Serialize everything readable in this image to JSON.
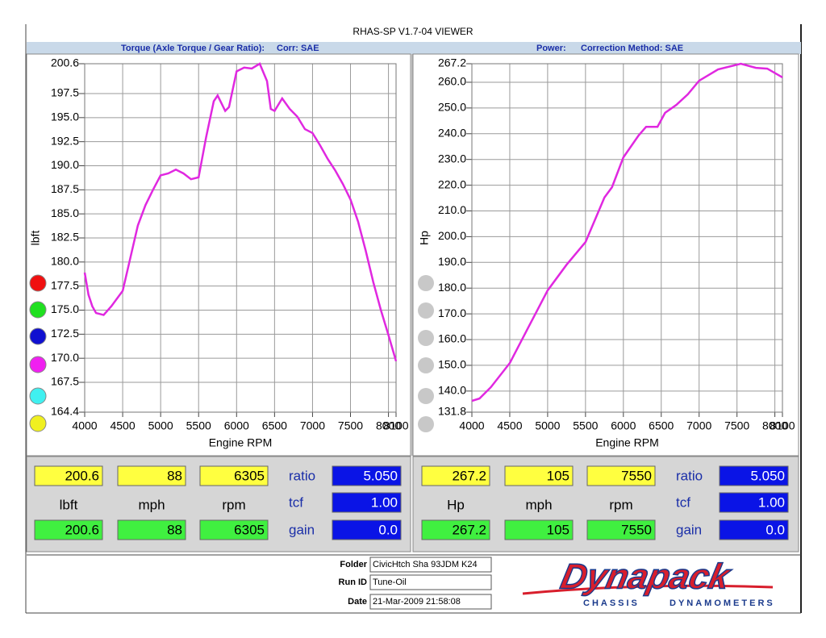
{
  "window_title": "RHAS-SP V1.7-04  VIEWER",
  "chart_data": [
    {
      "type": "line",
      "header": [
        "Torque (Axle Torque / Gear Ratio):",
        "Corr: SAE"
      ],
      "y_label": "lbft",
      "x_label": "Engine RPM",
      "x": [
        4000,
        4050,
        4100,
        4150,
        4250,
        4350,
        4500,
        4600,
        4700,
        4800,
        4900,
        5000,
        5100,
        5200,
        5300,
        5400,
        5500,
        5600,
        5700,
        5750,
        5850,
        5900,
        6000,
        6100,
        6200,
        6305,
        6400,
        6450,
        6500,
        6600,
        6700,
        6800,
        6900,
        7000,
        7100,
        7200,
        7300,
        7400,
        7500,
        7600,
        7700,
        7800,
        7900,
        8000,
        8100
      ],
      "series": [
        {
          "color": "#e028e0",
          "values": [
            178.9,
            176.6,
            175.4,
            174.7,
            174.5,
            175.4,
            177.0,
            180.4,
            183.8,
            185.9,
            187.5,
            189.0,
            189.2,
            189.6,
            189.2,
            188.6,
            188.8,
            193.0,
            196.7,
            197.3,
            195.7,
            196.1,
            199.8,
            200.2,
            200.1,
            200.6,
            198.8,
            195.9,
            195.7,
            197.0,
            195.9,
            195.1,
            193.8,
            193.4,
            192.1,
            190.7,
            189.5,
            188.1,
            186.5,
            184.2,
            181.2,
            177.9,
            175.0,
            172.4,
            169.7
          ]
        }
      ],
      "xlim": [
        4000,
        8100
      ],
      "xticks": [
        4000,
        4500,
        5000,
        5500,
        6000,
        6500,
        7000,
        7500,
        8000,
        8100
      ],
      "ylim": [
        164.4,
        200.6
      ],
      "yticks": [
        164.4,
        167.5,
        {
          "value": 170,
          "label": "170.0"
        },
        172.5,
        {
          "value": 175,
          "label": "175.0"
        },
        177.5,
        {
          "value": 180,
          "label": "180.0"
        },
        182.5,
        {
          "value": 185,
          "label": "185.0"
        },
        187.5,
        {
          "value": 190,
          "label": "190.0"
        },
        192.5,
        {
          "value": 195,
          "label": "195.0"
        },
        197.5,
        200.6
      ],
      "grid": true
    },
    {
      "type": "line",
      "header": [
        "Power:",
        "Correction Method: SAE"
      ],
      "y_label": "Hp",
      "x_label": "Engine RPM",
      "x": [
        4000,
        4100,
        4250,
        4500,
        4750,
        5000,
        5250,
        5500,
        5750,
        5850,
        6000,
        6200,
        6300,
        6450,
        6550,
        6700,
        6850,
        7000,
        7250,
        7550,
        7750,
        7900,
        8100
      ],
      "series": [
        {
          "color": "#e028e0",
          "values": [
            136.2,
            137.1,
            141.5,
            150.9,
            165.0,
            179.1,
            189.1,
            197.9,
            215.2,
            219.2,
            230.8,
            239.3,
            242.7,
            242.7,
            248.1,
            251.2,
            255.3,
            260.6,
            265.0,
            267.2,
            265.6,
            265.3,
            261.9
          ]
        }
      ],
      "xlim": [
        4000,
        8100
      ],
      "xticks": [
        4000,
        4500,
        5000,
        5500,
        6000,
        6500,
        7000,
        7500,
        8000,
        8100
      ],
      "ylim": [
        131.8,
        267.2
      ],
      "yticks": [
        131.8,
        {
          "value": 140,
          "label": "140.0"
        },
        {
          "value": 150,
          "label": "150.0"
        },
        {
          "value": 160,
          "label": "160.0"
        },
        {
          "value": 170,
          "label": "170.0"
        },
        {
          "value": 180,
          "label": "180.0"
        },
        {
          "value": 190,
          "label": "190.0"
        },
        {
          "value": 200,
          "label": "200.0"
        },
        {
          "value": 210,
          "label": "210.0"
        },
        {
          "value": 220,
          "label": "220.0"
        },
        {
          "value": 230,
          "label": "230.0"
        },
        {
          "value": 240,
          "label": "240.0"
        },
        {
          "value": 250,
          "label": "250.0"
        },
        {
          "value": 260,
          "label": "260.0"
        },
        267.2
      ],
      "grid": true
    }
  ],
  "readouts": [
    {
      "top": [
        "200.6",
        "88",
        "6305"
      ],
      "units": [
        "lbft",
        "mph",
        "rpm"
      ],
      "bottom": [
        "200.6",
        "88",
        "6305"
      ],
      "params": [
        "ratio",
        "tcf",
        "gain"
      ],
      "param_values": [
        "5.050",
        "1.00",
        "0.0"
      ]
    },
    {
      "top": [
        "267.2",
        "105",
        "7550"
      ],
      "units": [
        "Hp",
        "mph",
        "rpm"
      ],
      "bottom": [
        "267.2",
        "105",
        "7550"
      ],
      "params": [
        "ratio",
        "tcf",
        "gain"
      ],
      "param_values": [
        "5.050",
        "1.00",
        "0.0"
      ]
    }
  ],
  "info": {
    "labels": [
      "Folder",
      "Run ID",
      "Date"
    ],
    "values": [
      "CivicHtch Sha 93JDM K24",
      "Tune-Oil",
      "21-Mar-2009  21:58:08"
    ]
  },
  "logo": {
    "name": "Dynapack",
    "tagline": [
      "CHASSIS",
      "DYNAMOMETERS"
    ]
  }
}
